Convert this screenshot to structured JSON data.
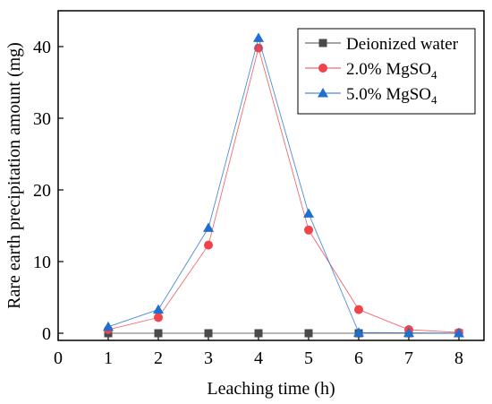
{
  "chart_data": {
    "type": "line",
    "title": "",
    "xlabel": "Leaching time  (h)",
    "ylabel": "Rare earth precipitation amount  (mg)",
    "xlim": [
      0,
      8.5
    ],
    "ylim": [
      -1,
      45
    ],
    "xticks": [
      0,
      1,
      2,
      3,
      4,
      5,
      6,
      7,
      8
    ],
    "yticks": [
      0,
      10,
      20,
      30,
      40
    ],
    "grid": false,
    "legend_position": "top-right",
    "series": [
      {
        "name": "Deionized water",
        "marker": "square",
        "color": "#4a4a4a",
        "x": [
          1,
          2,
          3,
          4,
          5,
          6,
          7,
          8
        ],
        "y": [
          0,
          0,
          0,
          0,
          0,
          0,
          0,
          0
        ]
      },
      {
        "name": "2.0% MgSO4",
        "legend_base": "2.0% MgSO",
        "legend_sub": "4",
        "marker": "circle",
        "color": "#f0434a",
        "x": [
          1,
          2,
          3,
          4,
          5,
          6,
          7,
          8
        ],
        "y": [
          0.5,
          2.2,
          12.3,
          39.8,
          14.4,
          3.3,
          0.5,
          0.1
        ]
      },
      {
        "name": "5.0% MgSO4",
        "legend_base": "5.0% MgSO",
        "legend_sub": "4",
        "marker": "triangle",
        "color": "#1f6fd1",
        "x": [
          1,
          2,
          3,
          4,
          5,
          6,
          7,
          8
        ],
        "y": [
          0.9,
          3.3,
          14.7,
          41.2,
          16.7,
          0.1,
          0.05,
          0.0
        ]
      }
    ]
  }
}
